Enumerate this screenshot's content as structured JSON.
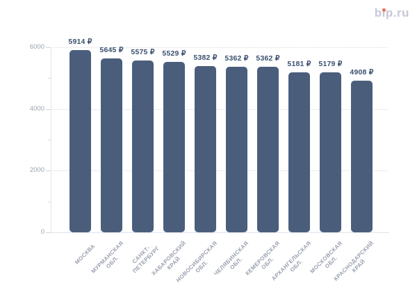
{
  "logo": {
    "text": "bip.ru",
    "dot_color": "#ee6f55"
  },
  "chart_data": {
    "type": "bar",
    "title": "",
    "categories": [
      "МОСКВА",
      "МУРМАНСКАЯ\nОБЛ.",
      "САНКТ-\nПЕТЕРБУРГ",
      "ХАБАРОВСКИЙ\nКРАЙ",
      "НОВОСИБИРСКАЯ\nОБЛ.",
      "ЧЕЛЯБИНСКАЯ\nОБЛ.",
      "КЕМЕРОВСКАЯ\nОБЛ.",
      "АРХАНГЕЛЬСКАЯ\nОБЛ.",
      "МОСКОВСКАЯ\nОБЛ.",
      "КРАСНОДАРСКИЙ\nКРАЙ"
    ],
    "values": [
      5914,
      5645,
      5575,
      5529,
      5382,
      5362,
      5362,
      5181,
      5179,
      4908
    ],
    "value_labels": [
      "5914 ₽",
      "5645 ₽",
      "5575 ₽",
      "5529 ₽",
      "5382 ₽",
      "5362 ₽",
      "5362 ₽",
      "5181 ₽",
      "5179 ₽",
      "4908 ₽"
    ],
    "value_suffix": " ₽",
    "ylim": [
      0,
      6000
    ],
    "yticks": [
      0,
      2000,
      4000,
      6000
    ],
    "ytick_labels": [
      "0",
      "2000",
      "4000",
      "6000"
    ],
    "minor_yticks": [
      1000,
      3000,
      5000
    ],
    "grid": true,
    "legend": false,
    "colors": {
      "bar": "#4a5e7c",
      "value_label": "#3a5070",
      "axis_text": "#9aa1b0",
      "category_text": "#99a0af",
      "gridline": "#d8dae1",
      "logo_text": "#c6c8d6",
      "logo_dot": "#ee6f55"
    }
  }
}
